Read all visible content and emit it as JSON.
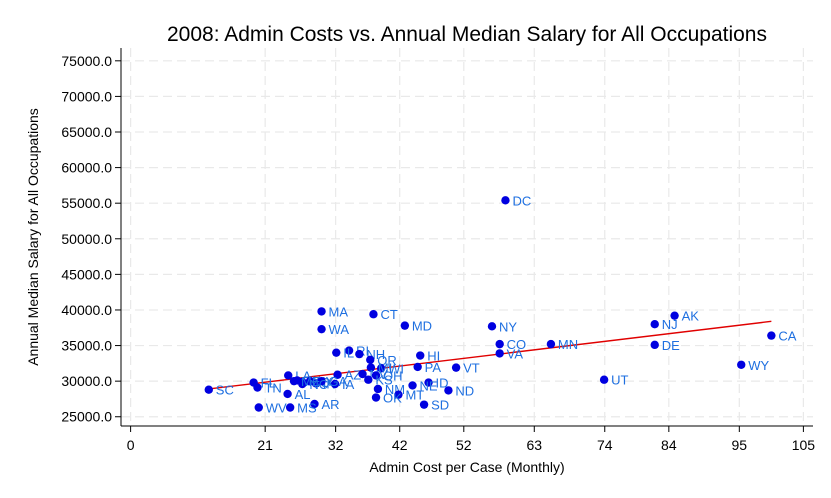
{
  "chart_data": {
    "type": "scatter",
    "title": "2008: Admin Costs vs. Annual Median Salary for All Occupations",
    "xlabel": "Admin Cost per Case (Monthly)",
    "ylabel": "Annual Median Salary for All Occupations",
    "xlim": [
      -1.5,
      106.5
    ],
    "ylim": [
      23700,
      76800
    ],
    "xticks": [
      0,
      21,
      32,
      42,
      52,
      63,
      74,
      84,
      95,
      105
    ],
    "yticks": [
      25000,
      30000,
      35000,
      40000,
      45000,
      50000,
      55000,
      60000,
      65000,
      70000,
      75000
    ],
    "ytick_labels": [
      "25000.0",
      "30000.0",
      "35000.0",
      "40000.0",
      "45000.0",
      "50000.0",
      "55000.0",
      "60000.0",
      "65000.0",
      "70000.0",
      "75000.0"
    ],
    "grid": true,
    "point_color": "#0000e0",
    "label_color": "#1e6fe0",
    "fit_line_color": "#e00000",
    "points": [
      {
        "label": "DC",
        "x": 58.5,
        "y": 55400
      },
      {
        "label": "MA",
        "x": 29.8,
        "y": 39800
      },
      {
        "label": "CT",
        "x": 37.9,
        "y": 39400
      },
      {
        "label": "MD",
        "x": 42.8,
        "y": 37800
      },
      {
        "label": "WA",
        "x": 29.8,
        "y": 37300
      },
      {
        "label": "NY",
        "x": 56.4,
        "y": 37700
      },
      {
        "label": "AK",
        "x": 84.9,
        "y": 39200
      },
      {
        "label": "NJ",
        "x": 81.8,
        "y": 38000
      },
      {
        "label": "CA",
        "x": 100.0,
        "y": 36400
      },
      {
        "label": "CO",
        "x": 57.6,
        "y": 35200
      },
      {
        "label": "MN",
        "x": 65.6,
        "y": 35200
      },
      {
        "label": "DE",
        "x": 81.8,
        "y": 35100
      },
      {
        "label": "VA",
        "x": 57.6,
        "y": 33900
      },
      {
        "label": "HI",
        "x": 45.2,
        "y": 33600
      },
      {
        "label": "RI",
        "x": 34.1,
        "y": 34300
      },
      {
        "label": "NH",
        "x": 35.7,
        "y": 33800
      },
      {
        "label": "IL",
        "x": 32.1,
        "y": 34000
      },
      {
        "label": "OR",
        "x": 37.4,
        "y": 33000
      },
      {
        "label": "WY",
        "x": 95.3,
        "y": 32300
      },
      {
        "label": "PA",
        "x": 44.8,
        "y": 32000
      },
      {
        "label": "VT",
        "x": 50.8,
        "y": 31900
      },
      {
        "label": "WI",
        "x": 39.1,
        "y": 31800
      },
      {
        "label": "MI",
        "x": 37.5,
        "y": 31900
      },
      {
        "label": "AZ",
        "x": 32.3,
        "y": 30900
      },
      {
        "label": "NV",
        "x": 36.2,
        "y": 31000
      },
      {
        "label": "OH",
        "x": 38.3,
        "y": 30800
      },
      {
        "label": "KS",
        "x": 37.1,
        "y": 30200
      },
      {
        "label": "ID",
        "x": 46.5,
        "y": 29800
      },
      {
        "label": "UT",
        "x": 73.9,
        "y": 30200
      },
      {
        "label": "FL",
        "x": 19.2,
        "y": 29800
      },
      {
        "label": "NE",
        "x": 44.0,
        "y": 29400
      },
      {
        "label": "MO",
        "x": 26.8,
        "y": 29900
      },
      {
        "label": "IN",
        "x": 28.9,
        "y": 29700
      },
      {
        "label": "IA",
        "x": 31.9,
        "y": 29600
      },
      {
        "label": "NM",
        "x": 38.6,
        "y": 28900
      },
      {
        "label": "ND",
        "x": 49.6,
        "y": 28700
      },
      {
        "label": "SC",
        "x": 12.2,
        "y": 28800
      },
      {
        "label": "TN",
        "x": 19.8,
        "y": 29100
      },
      {
        "label": "AL",
        "x": 24.5,
        "y": 28200
      },
      {
        "label": "MT",
        "x": 41.8,
        "y": 28100
      },
      {
        "label": "OK",
        "x": 38.3,
        "y": 27700
      },
      {
        "label": "AR",
        "x": 28.7,
        "y": 26800
      },
      {
        "label": "SD",
        "x": 45.8,
        "y": 26700
      },
      {
        "label": "WV",
        "x": 20.0,
        "y": 26300
      },
      {
        "label": "MS",
        "x": 24.9,
        "y": 26300
      },
      {
        "label": "LA",
        "x": 24.6,
        "y": 30800
      },
      {
        "label": "TX",
        "x": 26.0,
        "y": 30100
      },
      {
        "label": "KY",
        "x": 28.0,
        "y": 30000
      },
      {
        "label": "GA",
        "x": 29.8,
        "y": 30000
      },
      {
        "label": "NC",
        "x": 26.8,
        "y": 29600
      },
      {
        "label": "ME",
        "x": 25.5,
        "y": 30000
      }
    ],
    "fit_line": {
      "x": [
        12.2,
        100.0
      ],
      "y": [
        28900,
        38400
      ]
    }
  }
}
